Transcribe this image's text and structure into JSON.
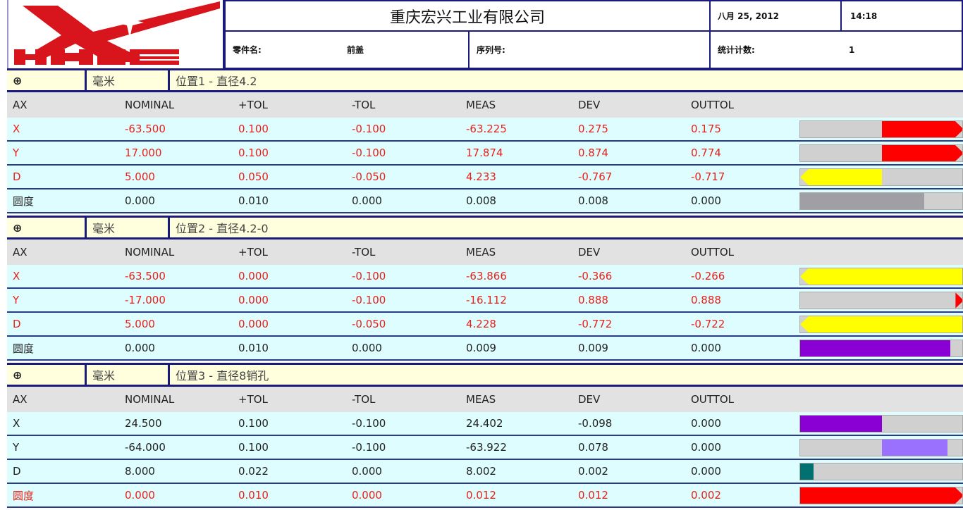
{
  "header": {
    "logo_text": "HXIE",
    "company": "重庆宏兴工业有限公司",
    "date": "八月 25, 2012",
    "time": "14:18",
    "part_label": "零件名:",
    "part_value": "前盖",
    "serial_label": "序列号:",
    "serial_value": "",
    "count_label": "统计计数:",
    "count_value": "1"
  },
  "columns": [
    "AX",
    "NOMINAL",
    "+TOL",
    "-TOL",
    "MEAS",
    "DEV",
    "OUTTOL"
  ],
  "sections": [
    {
      "icon": "⊕",
      "unit": "毫米",
      "title": "位置1 - 直径4.2",
      "rows": [
        {
          "out": true,
          "cells": [
            "X",
            "-63.500",
            "0.100",
            "-0.100",
            "-63.225",
            "0.275",
            "0.175"
          ],
          "bar": {
            "color": "#ff0000",
            "from": 0.5,
            "to": 1,
            "arrow": "right"
          }
        },
        {
          "out": true,
          "cells": [
            "Y",
            "17.000",
            "0.100",
            "-0.100",
            "17.874",
            "0.874",
            "0.774"
          ],
          "bar": {
            "color": "#ff0000",
            "from": 0.5,
            "to": 1,
            "arrow": "right"
          }
        },
        {
          "out": true,
          "cells": [
            "D",
            "5.000",
            "0.050",
            "-0.050",
            "4.233",
            "-0.767",
            "-0.717"
          ],
          "bar": {
            "color": "#ffff00",
            "from": 0,
            "to": 0.5,
            "arrow": "left"
          }
        },
        {
          "out": false,
          "cells": [
            "圆度",
            "0.000",
            "0.010",
            "0.000",
            "0.008",
            "0.008",
            "0.000"
          ],
          "bar": {
            "color": "#a0a0a4",
            "from": 0,
            "to": 0.76,
            "arrow": "none"
          }
        }
      ]
    },
    {
      "icon": "⊕",
      "unit": "毫米",
      "title": "位置2 - 直径4.2-0",
      "rows": [
        {
          "out": true,
          "cells": [
            "X",
            "-63.500",
            "0.000",
            "-0.100",
            "-63.866",
            "-0.366",
            "-0.266"
          ],
          "bar": {
            "color": "#ffff00",
            "from": 0,
            "to": 1,
            "arrow": "left"
          }
        },
        {
          "out": true,
          "cells": [
            "Y",
            "-17.000",
            "0.000",
            "-0.100",
            "-16.112",
            "0.888",
            "0.888"
          ],
          "bar": {
            "color": "#ff0000",
            "from": 0.95,
            "to": 1,
            "arrow": "right"
          }
        },
        {
          "out": true,
          "cells": [
            "D",
            "5.000",
            "0.000",
            "-0.050",
            "4.228",
            "-0.772",
            "-0.722"
          ],
          "bar": {
            "color": "#ffff00",
            "from": 0,
            "to": 1,
            "arrow": "left"
          }
        },
        {
          "out": false,
          "cells": [
            "圆度",
            "0.000",
            "0.010",
            "0.000",
            "0.009",
            "0.009",
            "0.000"
          ],
          "bar": {
            "color": "#8a00d4",
            "from": 0,
            "to": 0.92,
            "arrow": "none"
          }
        }
      ]
    },
    {
      "icon": "⊕",
      "unit": "毫米",
      "title": "位置3 - 直径8销孔",
      "rows": [
        {
          "out": false,
          "cells": [
            "X",
            "24.500",
            "0.100",
            "-0.100",
            "24.402",
            "-0.098",
            "0.000"
          ],
          "bar": {
            "color": "#8a00d4",
            "from": 0,
            "to": 0.5,
            "arrow": "none"
          }
        },
        {
          "out": false,
          "cells": [
            "Y",
            "-64.000",
            "0.100",
            "-0.100",
            "-63.922",
            "0.078",
            "0.000"
          ],
          "bar": {
            "color": "#9a70ff",
            "from": 0.5,
            "to": 0.9,
            "arrow": "none"
          }
        },
        {
          "out": false,
          "cells": [
            "D",
            "8.000",
            "0.022",
            "0.000",
            "8.002",
            "0.002",
            "0.000"
          ],
          "bar": {
            "color": "#007070",
            "from": 0,
            "to": 0.08,
            "arrow": "none"
          }
        },
        {
          "out": true,
          "cells": [
            "圆度",
            "0.000",
            "0.010",
            "0.000",
            "0.012",
            "0.012",
            "0.002"
          ],
          "bar": {
            "color": "#ff0000",
            "from": 0,
            "to": 1,
            "arrow": "right"
          }
        }
      ]
    }
  ]
}
